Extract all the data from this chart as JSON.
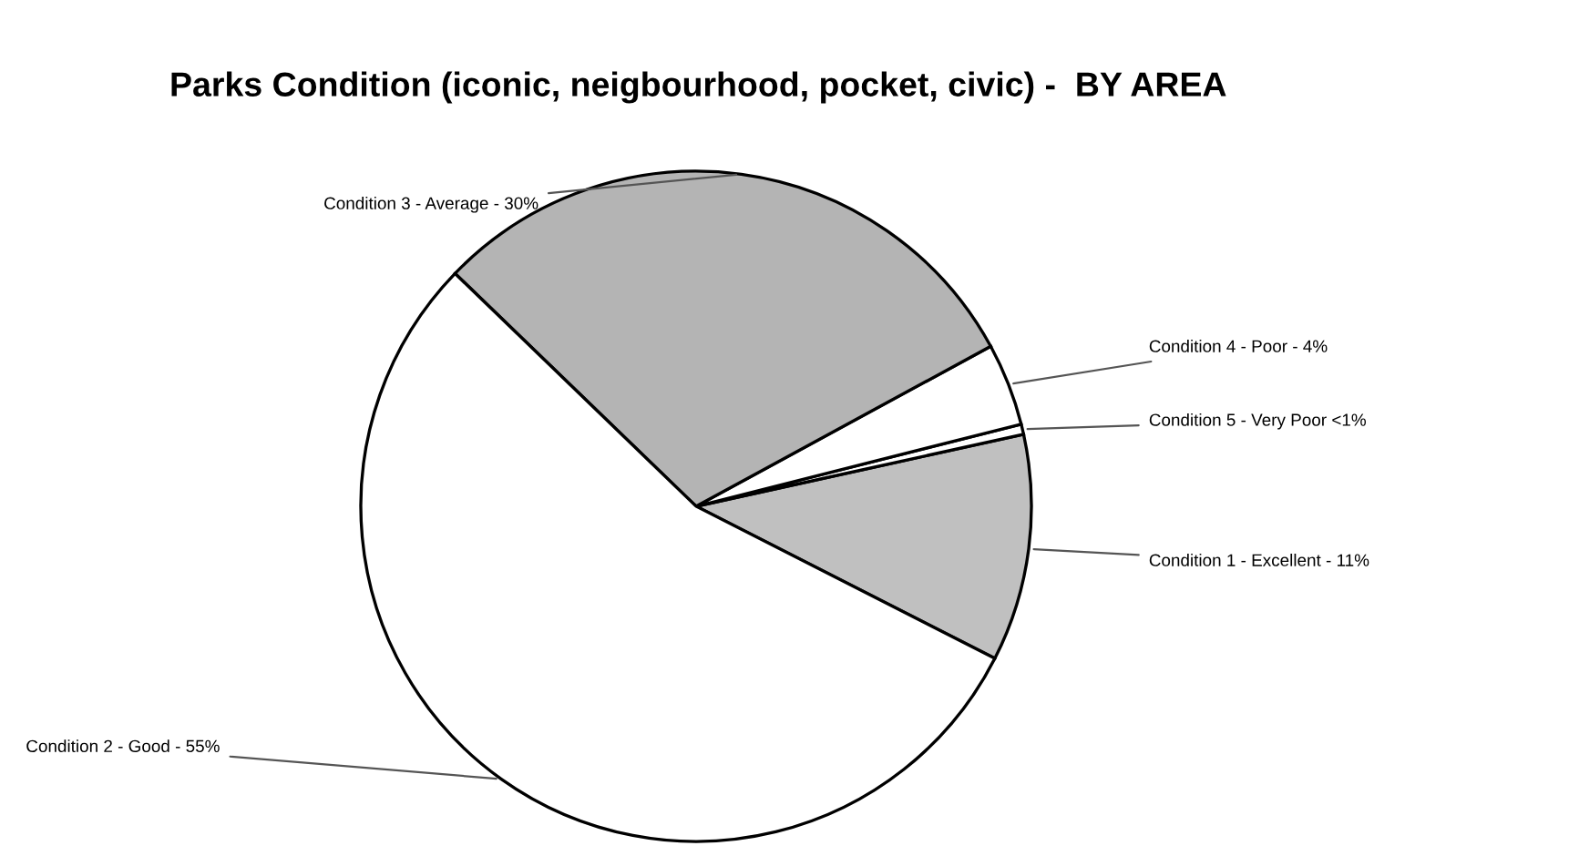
{
  "chart_data": {
    "type": "pie",
    "title": "Parks Condition (iconic, neigbourhood, pocket, civic) -  BY AREA",
    "categories": [
      "Condition 1 - Excellent - 11%",
      "Condition 5 - Very Poor <1%",
      "Condition 4 - Poor - 4%",
      "Condition 3 - Average - 30%",
      "Condition 2 - Good - 55%"
    ],
    "values": [
      11,
      0.5,
      4,
      30,
      55
    ],
    "colors": [
      "#c0c0c0",
      "#ffffff",
      "#ffffff",
      "#b4b4b4",
      "#ffffff"
    ],
    "legend": false
  }
}
